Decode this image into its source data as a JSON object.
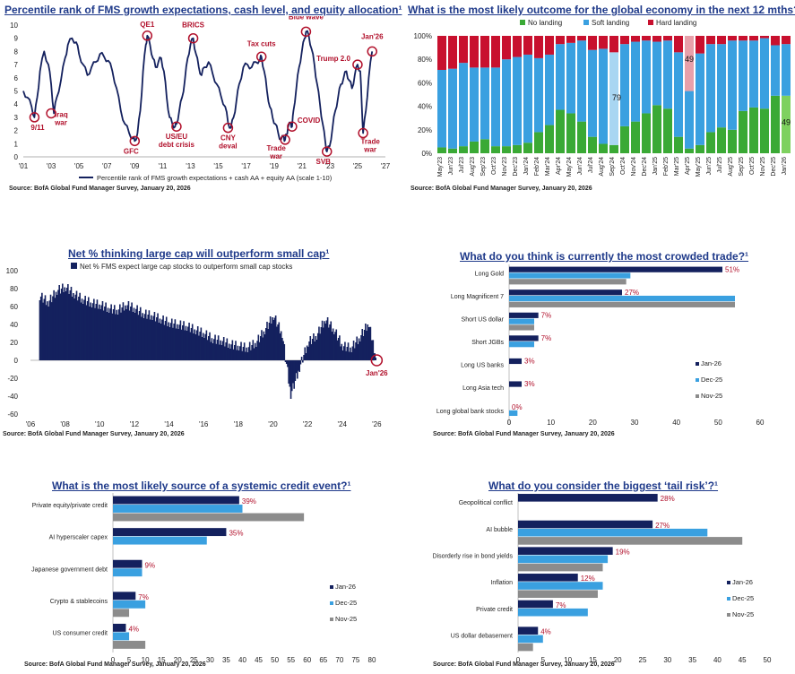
{
  "colors": {
    "navy": "#14215e",
    "blue": "#3aa0e0",
    "gray": "#8c8c8c",
    "green": "#3aa935",
    "red": "#c8102e",
    "title": "#1f3a8a",
    "annot": "#b1102b"
  },
  "charts": [
    {
      "id": "fms_percentile",
      "title": "Percentile rank of FMS growth expectations, cash level, and equity allocation¹",
      "source": "Source: BofA Global Fund Manager Survey, January 20, 2026",
      "legend": "Percentile rank of FMS growth expectations + cash AA + equity AA (scale 1-10)",
      "y_ticks": [
        "0",
        "1",
        "2",
        "3",
        "4",
        "5",
        "6",
        "7",
        "8",
        "9",
        "10"
      ],
      "x_ticks": [
        "'01",
        "'03",
        "'05",
        "'07",
        "'09",
        "'11",
        "'13",
        "'15",
        "'17",
        "'19",
        "'21",
        "'23",
        "'25",
        "'27"
      ],
      "annotations": [
        {
          "label": "9/11",
          "value_x": 2001.8,
          "value_y": 3.0
        },
        {
          "label": "Iraq\nwar",
          "value_x": 2003.0,
          "value_y": 3.3
        },
        {
          "label": "GFC",
          "value_x": 2009.0,
          "value_y": 1.2
        },
        {
          "label": "QE1",
          "value_x": 2009.9,
          "value_y": 9.2
        },
        {
          "label": "US/EU\ndebt crisis",
          "value_x": 2012.0,
          "value_y": 2.3
        },
        {
          "label": "BRICS",
          "value_x": 2013.2,
          "value_y": 9.0
        },
        {
          "label": "CNY\ndeval",
          "value_x": 2015.7,
          "value_y": 2.2
        },
        {
          "label": "Tax cuts",
          "value_x": 2018.1,
          "value_y": 7.6
        },
        {
          "label": "Trade\nwar",
          "value_x": 2019.8,
          "value_y": 1.3
        },
        {
          "label": "COVID",
          "value_x": 2020.3,
          "value_y": 2.3
        },
        {
          "label": "Blue wave",
          "value_x": 2021.3,
          "value_y": 9.5
        },
        {
          "label": "SVB",
          "value_x": 2022.8,
          "value_y": 0.4
        },
        {
          "label": "Trump 2.0",
          "value_x": 2025.0,
          "value_y": 7.0
        },
        {
          "label": "Trade\nwar",
          "value_x": 2025.4,
          "value_y": 1.8
        },
        {
          "label": "Jan'26",
          "value_x": 2026.05,
          "value_y": 8.0
        }
      ],
      "chart_data": {
        "type": "line",
        "title": "Percentile rank of FMS growth expectations, cash level, and equity allocation",
        "ylabel": "scale 1-10",
        "ylim": [
          0,
          10
        ],
        "xlim": [
          2001,
          2027
        ],
        "series": [
          {
            "name": "Percentile rank of FMS growth expectations + cash AA + equity AA (scale 1-10)",
            "x": [
              2001.0,
              2001.3,
              2001.6,
              2001.8,
              2002.0,
              2002.2,
              2002.5,
              2002.8,
              2003.0,
              2003.2,
              2003.4,
              2003.7,
              2004.0,
              2004.2,
              2004.5,
              2004.8,
              2005.0,
              2005.3,
              2005.6,
              2005.9,
              2006.2,
              2006.5,
              2006.8,
              2007.1,
              2007.4,
              2007.7,
              2008.0,
              2008.3,
              2008.6,
              2008.9,
              2009.0,
              2009.2,
              2009.4,
              2009.6,
              2009.8,
              2009.9,
              2010.1,
              2010.3,
              2010.5,
              2010.7,
              2010.9,
              2011.1,
              2011.3,
              2011.5,
              2011.7,
              2011.9,
              2012.0,
              2012.2,
              2012.4,
              2012.6,
              2012.8,
              2013.0,
              2013.2,
              2013.4,
              2013.6,
              2013.8,
              2014.0,
              2014.3,
              2014.6,
              2014.9,
              2015.2,
              2015.5,
              2015.7,
              2015.9,
              2016.1,
              2016.3,
              2016.5,
              2016.8,
              2017.1,
              2017.4,
              2017.7,
              2018.0,
              2018.1,
              2018.3,
              2018.5,
              2018.7,
              2018.9,
              2019.1,
              2019.3,
              2019.5,
              2019.7,
              2019.8,
              2019.9,
              2020.0,
              2020.2,
              2020.3,
              2020.4,
              2020.6,
              2020.8,
              2021.0,
              2021.2,
              2021.3,
              2021.5,
              2021.7,
              2021.9,
              2022.1,
              2022.3,
              2022.5,
              2022.7,
              2022.8,
              2023.0,
              2023.2,
              2023.4,
              2023.6,
              2023.8,
              2024.0,
              2024.2,
              2024.4,
              2024.6,
              2024.8,
              2025.0,
              2025.2,
              2025.3,
              2025.4,
              2025.6,
              2025.8,
              2026.05
            ],
            "y": [
              5.0,
              4.5,
              3.8,
              3.0,
              4.5,
              6.5,
              8.0,
              7.0,
              5.5,
              3.3,
              4.5,
              5.8,
              7.5,
              8.5,
              9.0,
              8.7,
              7.8,
              7.0,
              6.2,
              6.8,
              7.2,
              7.8,
              7.6,
              7.3,
              6.5,
              5.2,
              3.5,
              2.5,
              1.8,
              1.4,
              1.2,
              1.8,
              3.5,
              6.5,
              8.5,
              9.2,
              8.5,
              7.5,
              6.8,
              7.2,
              7.5,
              6.5,
              4.5,
              3.0,
              2.5,
              2.3,
              2.5,
              3.5,
              4.5,
              5.8,
              7.5,
              8.5,
              9.0,
              7.8,
              6.8,
              6.2,
              6.8,
              7.2,
              6.3,
              5.5,
              4.6,
              3.8,
              2.6,
              2.2,
              3.0,
              4.2,
              5.5,
              6.8,
              7.0,
              6.8,
              7.2,
              7.4,
              7.6,
              6.5,
              5.0,
              3.8,
              3.0,
              2.5,
              1.8,
              1.3,
              1.5,
              1.3,
              1.7,
              2.2,
              2.6,
              2.3,
              3.5,
              5.2,
              6.8,
              8.0,
              9.0,
              9.5,
              9.2,
              8.2,
              7.0,
              5.5,
              4.0,
              2.5,
              1.0,
              0.4,
              0.8,
              2.2,
              3.5,
              4.5,
              5.5,
              6.0,
              6.5,
              5.8,
              5.2,
              6.2,
              7.0,
              6.5,
              4.0,
              1.8,
              3.5,
              6.0,
              8.0
            ]
          }
        ]
      }
    },
    {
      "id": "landing",
      "title": "What is the most likely outcome for the global economy in the next 12 mths?¹",
      "source": "Source: BofA Global Fund Manager Survey, January 20, 2026",
      "y_ticks": [
        "0%",
        "20%",
        "40%",
        "60%",
        "80%",
        "100%"
      ],
      "legend": [
        "No landing",
        "Soft landing",
        "Hard landing"
      ],
      "bar_labels": {
        "sep24": "79",
        "apr25": "49",
        "jan26": "49"
      },
      "chart_data": {
        "type": "bar",
        "stacked": true,
        "title": "What is the most likely outcome for the global economy in the next 12 mths?",
        "ylabel": "%",
        "ylim": [
          0,
          100
        ],
        "categories": [
          "May'23",
          "Jun'23",
          "Jul'23",
          "Aug'23",
          "Sep'23",
          "Oct'23",
          "Nov'23",
          "Dec'23",
          "Jan'24",
          "Feb'24",
          "Mar'24",
          "Apr'24",
          "May'24",
          "Jun'24",
          "Jul'24",
          "Aug'24",
          "Sep'24",
          "Oct'24",
          "Nov'24",
          "Dec'24",
          "Jan'25",
          "Feb'25",
          "Mar'25",
          "Apr'25",
          "May'25",
          "Jun'25",
          "Jul'25",
          "Aug'25",
          "Sep'25",
          "Oct'25",
          "Nov'25",
          "Dec'25",
          "Jan'26"
        ],
        "series": [
          {
            "name": "No landing",
            "values": [
              5,
              4,
              6,
              10,
              12,
              6,
              6,
              7,
              9,
              18,
              24,
              37,
              34,
              27,
              14,
              8,
              7,
              23,
              27,
              34,
              41,
              38,
              14,
              4,
              7,
              18,
              22,
              20,
              36,
              39,
              38,
              49,
              49
            ]
          },
          {
            "name": "Soft landing",
            "values": [
              66,
              68,
              71,
              63,
              61,
              67,
              74,
              75,
              75,
              63,
              60,
              56,
              60,
              69,
              74,
              81,
              79,
              70,
              68,
              62,
              54,
              58,
              72,
              49,
              78,
              75,
              71,
              76,
              60,
              57,
              60,
              43,
              44
            ]
          },
          {
            "name": "Hard landing",
            "values": [
              29,
              28,
              23,
              27,
              27,
              27,
              20,
              18,
              16,
              19,
              16,
              7,
              6,
              4,
              12,
              11,
              14,
              7,
              5,
              4,
              5,
              4,
              14,
              47,
              15,
              7,
              7,
              4,
              4,
              4,
              2,
              8,
              7
            ]
          }
        ]
      }
    },
    {
      "id": "large_small",
      "title": "Net % thinking large cap will outperform small cap¹",
      "source": "Source: BofA Global Fund Manager Survey, January 20, 2026",
      "legend": "Net % FMS expect large cap stocks to outperform small cap stocks",
      "y_ticks": [
        "-60",
        "-40",
        "-20",
        "0",
        "20",
        "40",
        "60",
        "80",
        "100"
      ],
      "x_ticks": [
        "'06",
        "'08",
        "'10",
        "'12",
        "'14",
        "'16",
        "'18",
        "'20",
        "'22",
        "'24",
        "'26"
      ],
      "annotation": "Jan'26",
      "chart_data": {
        "type": "bar",
        "title": "Net % thinking large cap will outperform small cap",
        "ylabel": "Net %",
        "ylim": [
          -60,
          100
        ],
        "xlim": [
          2006,
          2026.5
        ],
        "series": [
          {
            "name": "Net % FMS expect large cap stocks to outperform small cap stocks",
            "x": [
              2006.5,
              2007.0,
              2007.5,
              2008.0,
              2008.5,
              2009.0,
              2009.5,
              2010.0,
              2010.5,
              2011.0,
              2011.5,
              2012.0,
              2012.5,
              2013.0,
              2013.5,
              2014.0,
              2014.5,
              2015.0,
              2015.5,
              2016.0,
              2016.5,
              2017.0,
              2017.5,
              2018.0,
              2018.5,
              2019.0,
              2019.5,
              2020.0,
              2020.5,
              2021.0,
              2021.5,
              2022.0,
              2022.5,
              2023.0,
              2023.5,
              2024.0,
              2024.5,
              2025.0,
              2025.5,
              2025.9
            ],
            "values": [
              72,
              65,
              78,
              82,
              74,
              68,
              64,
              62,
              58,
              56,
              62,
              58,
              52,
              50,
              46,
              42,
              40,
              38,
              34,
              30,
              24,
              22,
              18,
              16,
              14,
              20,
              34,
              50,
              30,
              -38,
              -8,
              20,
              28,
              46,
              34,
              16,
              14,
              26,
              42,
              3
            ]
          }
        ]
      }
    },
    {
      "id": "crowded",
      "title": "What do you think is currently the most crowded trade?¹",
      "source": "Source: BofA Global Fund Manager Survey, January 20, 2026",
      "x_ticks": [
        "0",
        "10",
        "20",
        "30",
        "40",
        "50",
        "60"
      ],
      "legend": [
        "Jan-26",
        "Dec-25",
        "Nov-25"
      ],
      "pct_labels": [
        "51%",
        "27%",
        "7%",
        "7%",
        "3%",
        "3%",
        "0%"
      ],
      "chart_data": {
        "type": "bar",
        "orientation": "horizontal",
        "title": "What do you think is currently the most crowded trade?",
        "xlim": [
          0,
          60
        ],
        "categories": [
          "Long Gold",
          "Long Magnificent 7",
          "Short US dollar",
          "Short JGBs",
          "Long US banks",
          "Long Asia tech",
          "Long global bank stocks"
        ],
        "series": [
          {
            "name": "Jan-26",
            "values": [
              51,
              27,
              7,
              7,
              3,
              3,
              0
            ]
          },
          {
            "name": "Dec-25",
            "values": [
              29,
              54,
              6,
              6,
              0,
              0,
              2
            ]
          },
          {
            "name": "Nov-25",
            "values": [
              28,
              54,
              6,
              0,
              0,
              0,
              0
            ]
          }
        ]
      }
    },
    {
      "id": "credit",
      "title": "What is the most likely source of a systemic credit event?¹",
      "source": "Source: BofA Global Fund Manager Survey, January 20, 2026",
      "x_ticks": [
        "0",
        "5",
        "10",
        "15",
        "20",
        "25",
        "30",
        "35",
        "40",
        "45",
        "50",
        "55",
        "60",
        "65",
        "70",
        "75",
        "80"
      ],
      "legend": [
        "Jan-26",
        "Dec-25",
        "Nov-25"
      ],
      "pct_labels": [
        "39%",
        "35%",
        "9%",
        "7%",
        "4%"
      ],
      "chart_data": {
        "type": "bar",
        "orientation": "horizontal",
        "title": "What is the most likely source of a systemic credit event?",
        "xlim": [
          0,
          80
        ],
        "categories": [
          "Private equity/private credit",
          "AI hyperscaler capex",
          "Japanese government debt",
          "Crypto & stablecoins",
          "US consumer credit"
        ],
        "series": [
          {
            "name": "Jan-26",
            "values": [
              39,
              35,
              9,
              7,
              4
            ]
          },
          {
            "name": "Dec-25",
            "values": [
              40,
              29,
              9,
              10,
              5
            ]
          },
          {
            "name": "Nov-25",
            "values": [
              59,
              0,
              0,
              5,
              10
            ]
          }
        ]
      }
    },
    {
      "id": "tail_risk",
      "title": "What do you consider the biggest ‘tail risk’?¹",
      "source": "Source: BofA Global Fund Manager Survey, January 20, 2026",
      "x_ticks": [
        "0",
        "5",
        "10",
        "15",
        "20",
        "25",
        "30",
        "35",
        "40",
        "45",
        "50"
      ],
      "legend": [
        "Jan-26",
        "Dec-25",
        "Nov-25"
      ],
      "pct_labels": [
        "28%",
        "27%",
        "19%",
        "12%",
        "7%",
        "4%"
      ],
      "chart_data": {
        "type": "bar",
        "orientation": "horizontal",
        "title": "What do you consider the biggest ‘tail risk’?",
        "xlim": [
          0,
          50
        ],
        "categories": [
          "Geopolitical conflict",
          "AI bubble",
          "Disorderly rise in bond yields",
          "Inflation",
          "Private credit",
          "US dollar debasement"
        ],
        "series": [
          {
            "name": "Jan-26",
            "values": [
              28,
              27,
              19,
              12,
              7,
              4
            ]
          },
          {
            "name": "Dec-25",
            "values": [
              0,
              38,
              18,
              17,
              14,
              5
            ]
          },
          {
            "name": "Nov-25",
            "values": [
              0,
              45,
              17,
              16,
              0,
              3
            ]
          }
        ]
      }
    }
  ]
}
